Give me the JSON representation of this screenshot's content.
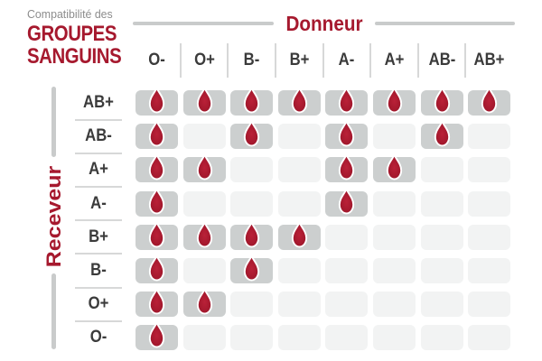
{
  "title": {
    "kicker": "Compatibilité des",
    "line1": "GROUPES",
    "line2": "SANGUINS"
  },
  "axes": {
    "donor_label": "Donneur",
    "receiver_label": "Receveur"
  },
  "chart_data": {
    "type": "heatmap",
    "title": "Compatibilité des GROUPES SANGUINS",
    "x_axis_label": "Donneur",
    "y_axis_label": "Receveur",
    "columns": [
      "O-",
      "O+",
      "B-",
      "B+",
      "A-",
      "A+",
      "AB-",
      "AB+"
    ],
    "rows": [
      "AB+",
      "AB-",
      "A+",
      "A-",
      "B+",
      "B-",
      "O+",
      "O-"
    ],
    "matrix": [
      [
        1,
        1,
        1,
        1,
        1,
        1,
        1,
        1
      ],
      [
        1,
        0,
        1,
        0,
        1,
        0,
        1,
        0
      ],
      [
        1,
        1,
        0,
        0,
        1,
        1,
        0,
        0
      ],
      [
        1,
        0,
        0,
        0,
        1,
        0,
        0,
        0
      ],
      [
        1,
        1,
        1,
        1,
        0,
        0,
        0,
        0
      ],
      [
        1,
        0,
        1,
        0,
        0,
        0,
        0,
        0
      ],
      [
        1,
        1,
        0,
        0,
        0,
        0,
        0,
        0
      ],
      [
        1,
        0,
        0,
        0,
        0,
        0,
        0,
        0
      ]
    ],
    "marker_icon": "blood-drop-icon",
    "legend_position": "none",
    "grid": "cells"
  },
  "colors": {
    "accent_red": "#A6192E",
    "drop_red": "#A81A2D",
    "cell_filled_bg": "#CCCFCF",
    "cell_empty_bg": "#F2F3F3",
    "kicker_gray": "#8C8C8C",
    "label_dark": "#3B3B3B",
    "line_gray": "#C9CBCB"
  }
}
